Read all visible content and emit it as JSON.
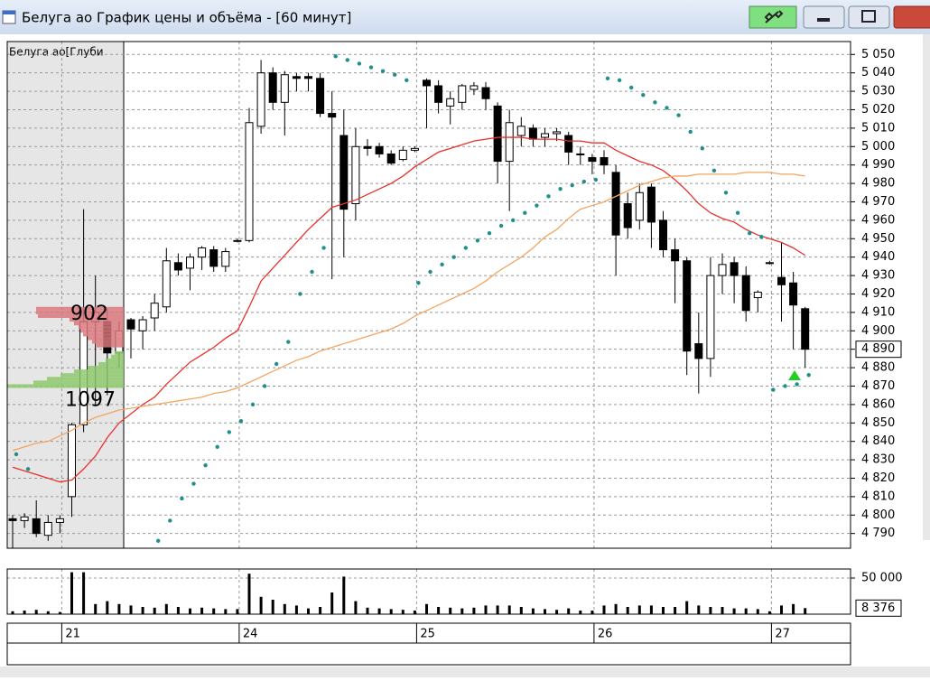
{
  "window": {
    "title": "Белуга ао График цены и объёма - [60 минут]"
  },
  "chart_data": {
    "type": "candlestick",
    "categories": [
      null,
      null,
      null,
      null,
      "21",
      null,
      null,
      null,
      null,
      null,
      null,
      null,
      null,
      null,
      null,
      null,
      null,
      null,
      null,
      "24",
      null,
      null,
      null,
      null,
      null,
      null,
      null,
      null,
      null,
      null,
      null,
      null,
      null,
      null,
      "25",
      null,
      null,
      null,
      null,
      null,
      null,
      null,
      null,
      null,
      null,
      null,
      null,
      null,
      null,
      "26",
      null,
      null,
      null,
      null,
      null,
      null,
      null,
      null,
      null,
      null,
      null,
      null,
      null,
      null,
      "27",
      null,
      null,
      null
    ],
    "open": [
      4798,
      4797,
      4798,
      4789,
      4796,
      4810,
      4849,
      4905,
      4905,
      4888,
      4906,
      4900,
      4907,
      4913,
      4937,
      4934,
      4940,
      4944,
      4935,
      4949,
      4949,
      5011,
      5040,
      5024,
      5038,
      5038,
      5037,
      5018,
      5006,
      4969,
      5000,
      5000,
      4996,
      4993,
      4998,
      5036,
      5033,
      5022,
      5024,
      5031,
      5032,
      5022,
      4992,
      5006,
      5010,
      5005,
      5007,
      5006,
      4996,
      4994,
      4994,
      4986,
      4969,
      4960,
      4978,
      4960,
      4944,
      4938,
      4893,
      4885,
      4930,
      4937,
      4930,
      4918,
      4937,
      4929,
      4926,
      4912
    ],
    "high": [
      4800,
      4801,
      4808,
      4800,
      4800,
      4850,
      4966,
      4930,
      4912,
      4905,
      4907,
      4908,
      4920,
      4945,
      4942,
      4942,
      4946,
      4946,
      4945,
      4950,
      5021,
      5047,
      5043,
      5041,
      5040,
      5040,
      5040,
      5030,
      5020,
      5010,
      5004,
      5002,
      4998,
      5000,
      5000,
      5037,
      5036,
      5030,
      5034,
      5035,
      5035,
      5024,
      5020,
      5016,
      5012,
      5010,
      5010,
      5008,
      5000,
      4996,
      4998,
      4990,
      4975,
      4980,
      4980,
      4965,
      4950,
      4940,
      4910,
      4940,
      4942,
      4940,
      4935,
      4922,
      4938,
      4948,
      4932,
      4913
    ],
    "low": [
      4782,
      4793,
      4788,
      4786,
      4790,
      4799,
      4845,
      4860,
      4865,
      4880,
      4885,
      4890,
      4900,
      4910,
      4930,
      4922,
      4933,
      4932,
      4932,
      4948,
      4948,
      5007,
      5020,
      5006,
      5030,
      5030,
      5016,
      4928,
      4940,
      4960,
      4995,
      4994,
      4990,
      4992,
      4997,
      5010,
      5018,
      5012,
      5020,
      5028,
      5020,
      4980,
      4965,
      5000,
      5000,
      5000,
      5003,
      4990,
      4990,
      4985,
      4985,
      4930,
      4950,
      4955,
      4945,
      4940,
      4915,
      4876,
      4866,
      4875,
      4920,
      4915,
      4905,
      4910,
      4936,
      4905,
      4890,
      4880
    ],
    "close": [
      4797,
      4799,
      4790,
      4796,
      4798,
      4849,
      4905,
      4910,
      4888,
      4900,
      4901,
      4906,
      4915,
      4938,
      4933,
      4940,
      4945,
      4935,
      4943,
      4949,
      5013,
      5040,
      5024,
      5039,
      5037,
      5037,
      5018,
      5016,
      4966,
      5000,
      4999,
      4996,
      4991,
      4998,
      4999,
      5033,
      5024,
      5026,
      5033,
      5033,
      5026,
      4992,
      5013,
      5011,
      5004,
      5007,
      5008,
      4997,
      4996,
      4992,
      4990,
      4952,
      4956,
      4975,
      4959,
      4944,
      4938,
      4889,
      4885,
      4930,
      4936,
      4930,
      4911,
      4921,
      4937,
      4925,
      4914,
      4890
    ],
    "ylim": [
      4782,
      5057
    ],
    "yticks": [
      {
        "value": 4790,
        "label": "4 790"
      },
      {
        "value": 4800,
        "label": "4 800"
      },
      {
        "value": 4810,
        "label": "4 810"
      },
      {
        "value": 4820,
        "label": "4 820"
      },
      {
        "value": 4830,
        "label": "4 830"
      },
      {
        "value": 4840,
        "label": "4 840"
      },
      {
        "value": 4850,
        "label": "4 850"
      },
      {
        "value": 4860,
        "label": "4 860"
      },
      {
        "value": 4870,
        "label": "4 870"
      },
      {
        "value": 4880,
        "label": "4 880"
      },
      {
        "value": 4890,
        "label": "4 890"
      },
      {
        "value": 4900,
        "label": "4 900"
      },
      {
        "value": 4910,
        "label": "4 910"
      },
      {
        "value": 4920,
        "label": "4 920"
      },
      {
        "value": 4930,
        "label": "4 930"
      },
      {
        "value": 4940,
        "label": "4 940"
      },
      {
        "value": 4950,
        "label": "4 950"
      },
      {
        "value": 4960,
        "label": "4 960"
      },
      {
        "value": 4970,
        "label": "4 970"
      },
      {
        "value": 4980,
        "label": "4 980"
      },
      {
        "value": 4990,
        "label": "4 990"
      },
      {
        "value": 5000,
        "label": "5 000"
      },
      {
        "value": 5010,
        "label": "5 010"
      },
      {
        "value": 5020,
        "label": "5 020"
      },
      {
        "value": 5030,
        "label": "5 030"
      },
      {
        "value": 5040,
        "label": "5 040"
      },
      {
        "value": 5050,
        "label": "5 050"
      }
    ],
    "grid": true,
    "price_last_label": "4 890",
    "overlays": [
      {
        "color": "#e8302c",
        "values": [
          4826,
          4824,
          4822,
          4820,
          4818,
          4819,
          4825,
          4832,
          4842,
          4850,
          4855,
          4860,
          4864,
          4871,
          4877,
          4883,
          4887,
          4891,
          4896,
          4900,
          4913,
          4927,
          4934,
          4941,
          4948,
          4955,
          4961,
          4967,
          4969,
          4971,
          4974,
          4977,
          4980,
          4984,
          4989,
          4993,
          4997,
          4999,
          5001,
          5003,
          5004,
          5005,
          5005,
          5005,
          5004,
          5004,
          5004,
          5003,
          5003,
          5002,
          5002,
          4998,
          4995,
          4992,
          4990,
          4987,
          4982,
          4976,
          4969,
          4964,
          4961,
          4959,
          4955,
          4952,
          4950,
          4948,
          4945,
          4941
        ]
      },
      {
        "color": "#f4a460",
        "values": [
          4835,
          4837,
          4839,
          4840,
          4843,
          4846,
          4850,
          4853,
          4855,
          4857,
          4858,
          4859,
          4860,
          4861,
          4862,
          4863,
          4864,
          4866,
          4867,
          4869,
          4872,
          4875,
          4878,
          4881,
          4884,
          4886,
          4889,
          4891,
          4893,
          4895,
          4897,
          4899,
          4901,
          4904,
          4908,
          4911,
          4914,
          4917,
          4920,
          4923,
          4927,
          4932,
          4936,
          4940,
          4945,
          4951,
          4955,
          4961,
          4966,
          4968,
          4970,
          4973,
          4976,
          4979,
          4981,
          4983,
          4984,
          4984,
          4985,
          4985,
          4985,
          4985,
          4986,
          4986,
          4986,
          4985,
          4985,
          4984
        ]
      }
    ],
    "sar": {
      "color": "#1f8f8a",
      "values": [
        4833,
        4825,
        null,
        null,
        null,
        null,
        null,
        null,
        null,
        null,
        null,
        null,
        4786,
        4797,
        4809,
        4817,
        4827,
        4837,
        4845,
        4851,
        4860,
        4870,
        4882,
        4894,
        4920,
        4932,
        4945,
        5049,
        5047,
        5045,
        5043,
        5041,
        5039,
        5036,
        4926,
        4932,
        4936,
        4940,
        4945,
        4949,
        4953,
        4957,
        4960,
        4964,
        4968,
        4973,
        4977,
        4979,
        4981,
        4982,
        5037,
        5036,
        5032,
        5028,
        5024,
        5021,
        5017,
        5008,
        4999,
        4987,
        4975,
        4964,
        4953,
        4951,
        4868,
        4870,
        4871,
        4876
      ]
    },
    "volume": {
      "color": "#000000",
      "values": [
        4000,
        5000,
        6000,
        4000,
        3000,
        58000,
        58000,
        14000,
        18000,
        14000,
        12000,
        10000,
        9000,
        14000,
        10000,
        8000,
        9000,
        8000,
        7000,
        7000,
        56000,
        24000,
        20000,
        14000,
        12000,
        8000,
        10000,
        30000,
        52000,
        18000,
        9000,
        8000,
        7000,
        6000,
        5000,
        14000,
        10000,
        9000,
        8000,
        9000,
        12000,
        12000,
        12000,
        10000,
        8000,
        7000,
        6000,
        8000,
        5000,
        5000,
        12000,
        14000,
        10000,
        12000,
        12000,
        10000,
        10000,
        18000,
        12000,
        10000,
        10000,
        8000,
        8000,
        7000,
        4000,
        12000,
        14000,
        8376
      ],
      "ylim": [
        0,
        62500
      ],
      "yticks": [
        {
          "value": 50000,
          "label": "50 000"
        }
      ],
      "last_label": "8 376"
    },
    "depth": {
      "title": "Белуга ао[Глуби",
      "ask_total": 902,
      "bid_total": 1097,
      "xlim": [
        0,
        129
      ],
      "asks": {
        "color": "#d9777c",
        "prices": [
          4912,
          4910,
          4908,
          4906,
          4904,
          4902,
          4900,
          4898,
          4896,
          4894,
          4892
        ],
        "volumes": [
          97,
          97,
          95,
          60,
          55,
          50,
          48,
          45,
          40,
          35,
          30
        ]
      },
      "bids": {
        "color": "#8cc86a",
        "prices": [
          4888,
          4886,
          4884,
          4882,
          4880,
          4878,
          4876,
          4874,
          4872,
          4870
        ],
        "volumes": [
          10,
          14,
          20,
          28,
          40,
          55,
          70,
          85,
          100,
          129
        ]
      }
    }
  }
}
